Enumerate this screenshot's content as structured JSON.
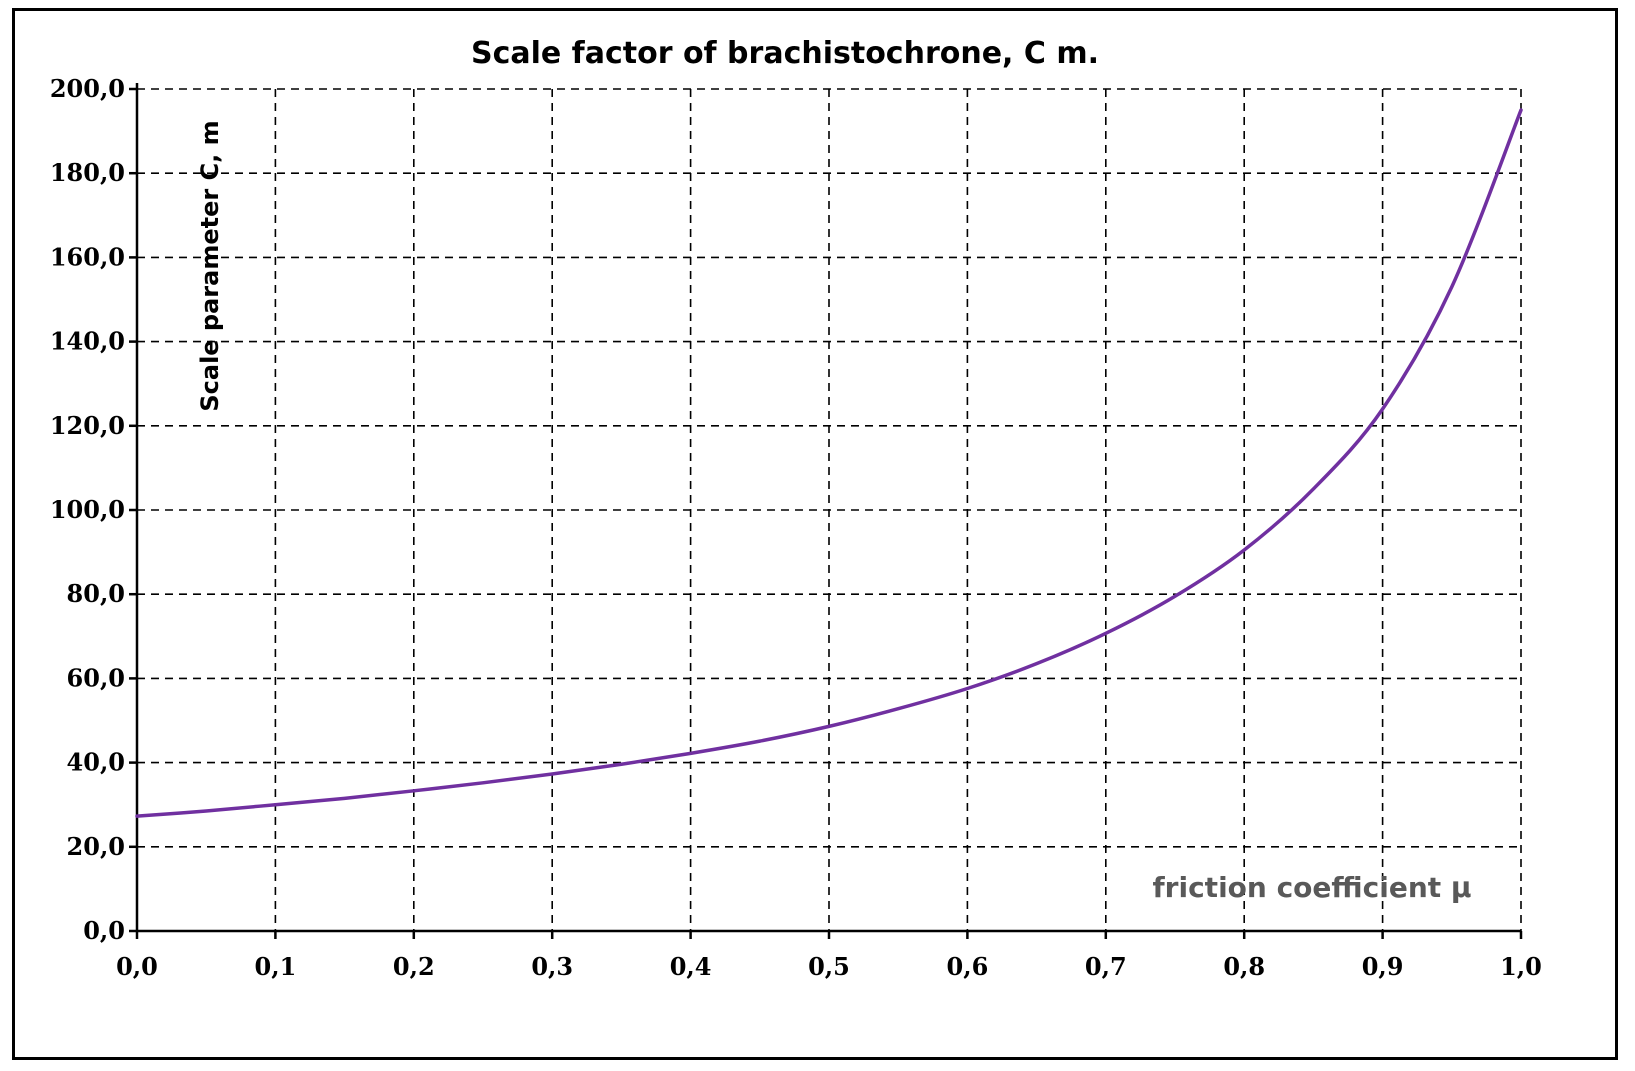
{
  "chart_data": {
    "type": "line",
    "title": "Scale factor of brachistochrone,  C m.",
    "xlabel": "friction coefficient μ",
    "ylabel": "Scale parameter C, m",
    "xlim": [
      0.0,
      1.0
    ],
    "ylim": [
      0.0,
      200.0
    ],
    "x_tick_labels": [
      "0,0",
      "0,1",
      "0,2",
      "0,3",
      "0,4",
      "0,5",
      "0,6",
      "0,7",
      "0,8",
      "0,9",
      "1,0"
    ],
    "y_tick_labels": [
      "0,0",
      "20,0",
      "40,0",
      "60,0",
      "80,0",
      "100,0",
      "120,0",
      "140,0",
      "160,0",
      "180,0",
      "200,0"
    ],
    "grid": true,
    "series": [
      {
        "color": "#7030A0",
        "x": [
          0.0,
          0.05,
          0.1,
          0.15,
          0.2,
          0.25,
          0.3,
          0.35,
          0.4,
          0.45,
          0.5,
          0.55,
          0.6,
          0.65,
          0.7,
          0.75,
          0.8,
          0.85,
          0.9,
          0.95,
          1.0
        ],
        "y": [
          27.3,
          28.5,
          30.0,
          31.5,
          33.3,
          35.2,
          37.3,
          39.6,
          42.2,
          45.1,
          48.6,
          52.8,
          57.6,
          63.5,
          70.7,
          79.5,
          90.5,
          105.0,
          124.0,
          153.0,
          195.0
        ]
      }
    ]
  }
}
